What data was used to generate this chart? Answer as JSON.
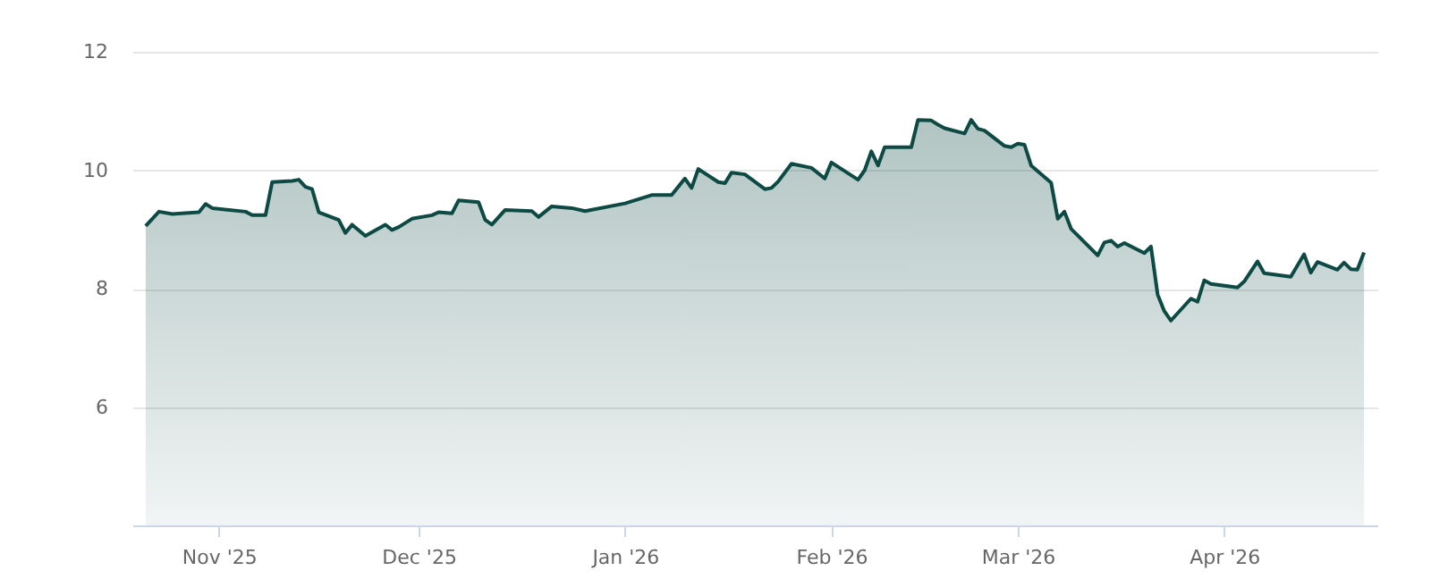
{
  "chart_data": {
    "type": "area",
    "x": [
      "2025-10-21",
      "2025-10-23",
      "2025-10-25",
      "2025-10-29",
      "2025-10-30",
      "2025-10-31",
      "2025-11-05",
      "2025-11-06",
      "2025-11-08",
      "2025-11-09",
      "2025-11-12",
      "2025-11-13",
      "2025-11-14",
      "2025-11-15",
      "2025-11-16",
      "2025-11-19",
      "2025-11-20",
      "2025-11-21",
      "2025-11-23",
      "2025-11-26",
      "2025-11-27",
      "2025-11-28",
      "2025-11-30",
      "2025-12-03",
      "2025-12-04",
      "2025-12-06",
      "2025-12-07",
      "2025-12-10",
      "2025-12-11",
      "2025-12-12",
      "2025-12-14",
      "2025-12-18",
      "2025-12-19",
      "2025-12-21",
      "2025-12-24",
      "2025-12-26",
      "2026-01-01",
      "2026-01-05",
      "2026-01-08",
      "2026-01-10",
      "2026-01-11",
      "2026-01-12",
      "2026-01-15",
      "2026-01-16",
      "2026-01-17",
      "2026-01-19",
      "2026-01-22",
      "2026-01-23",
      "2026-01-24",
      "2026-01-26",
      "2026-01-29",
      "2026-01-31",
      "2026-02-01",
      "2026-02-05",
      "2026-02-06",
      "2026-02-07",
      "2026-02-08",
      "2026-02-09",
      "2026-02-13",
      "2026-02-14",
      "2026-02-16",
      "2026-02-17",
      "2026-02-18",
      "2026-02-21",
      "2026-02-22",
      "2026-02-23",
      "2026-02-24",
      "2026-02-27",
      "2026-02-28",
      "2026-03-01",
      "2026-03-02",
      "2026-03-03",
      "2026-03-06",
      "2026-03-07",
      "2026-03-08",
      "2026-03-09",
      "2026-03-13",
      "2026-03-14",
      "2026-03-15",
      "2026-03-16",
      "2026-03-17",
      "2026-03-20",
      "2026-03-21",
      "2026-03-22",
      "2026-03-23",
      "2026-03-24",
      "2026-03-27",
      "2026-03-28",
      "2026-03-29",
      "2026-03-30",
      "2026-04-03",
      "2026-04-04",
      "2026-04-06",
      "2026-04-07",
      "2026-04-11",
      "2026-04-13",
      "2026-04-14",
      "2026-04-15",
      "2026-04-18",
      "2026-04-19",
      "2026-04-20",
      "2026-04-21",
      "2026-04-22"
    ],
    "series": [
      {
        "color": "#0e4a44",
        "values": [
          9.06,
          9.3,
          9.26,
          9.29,
          9.43,
          9.36,
          9.3,
          9.24,
          9.24,
          9.8,
          9.82,
          9.84,
          9.72,
          9.68,
          9.29,
          9.16,
          8.94,
          9.08,
          8.89,
          9.08,
          8.99,
          9.04,
          9.18,
          9.24,
          9.29,
          9.27,
          9.49,
          9.46,
          9.16,
          9.08,
          9.33,
          9.31,
          9.21,
          9.39,
          9.36,
          9.31,
          9.44,
          9.58,
          9.58,
          9.86,
          9.7,
          10.02,
          9.8,
          9.78,
          9.96,
          9.93,
          9.68,
          9.7,
          9.81,
          10.11,
          10.04,
          9.86,
          10.13,
          9.84,
          10.0,
          10.32,
          10.08,
          10.39,
          10.39,
          10.85,
          10.84,
          10.77,
          10.71,
          10.62,
          10.85,
          10.7,
          10.67,
          10.41,
          10.39,
          10.45,
          10.43,
          10.08,
          9.79,
          9.18,
          9.3,
          9.01,
          8.56,
          8.78,
          8.81,
          8.71,
          8.77,
          8.6,
          8.71,
          7.9,
          7.62,
          7.46,
          7.83,
          7.78,
          8.14,
          8.08,
          8.02,
          8.12,
          8.46,
          8.26,
          8.2,
          8.58,
          8.27,
          8.45,
          8.32,
          8.44,
          8.33,
          8.32,
          8.61
        ]
      }
    ],
    "xlim": [
      "2025-10-19",
      "2026-04-24"
    ],
    "xticks": [
      {
        "value": "2025-11-01",
        "label": "Nov '25"
      },
      {
        "value": "2025-12-01",
        "label": "Dec '25"
      },
      {
        "value": "2026-01-01",
        "label": "Jan '26"
      },
      {
        "value": "2026-02-01",
        "label": "Feb '26"
      },
      {
        "value": "2026-03-01",
        "label": "Mar '26"
      },
      {
        "value": "2026-04-01",
        "label": "Apr '26"
      }
    ],
    "ylim": [
      4,
      12
    ],
    "yticks": [
      6,
      8,
      10,
      12
    ],
    "grid": "y",
    "legend": false,
    "marker": "none",
    "line_style": "solid"
  }
}
